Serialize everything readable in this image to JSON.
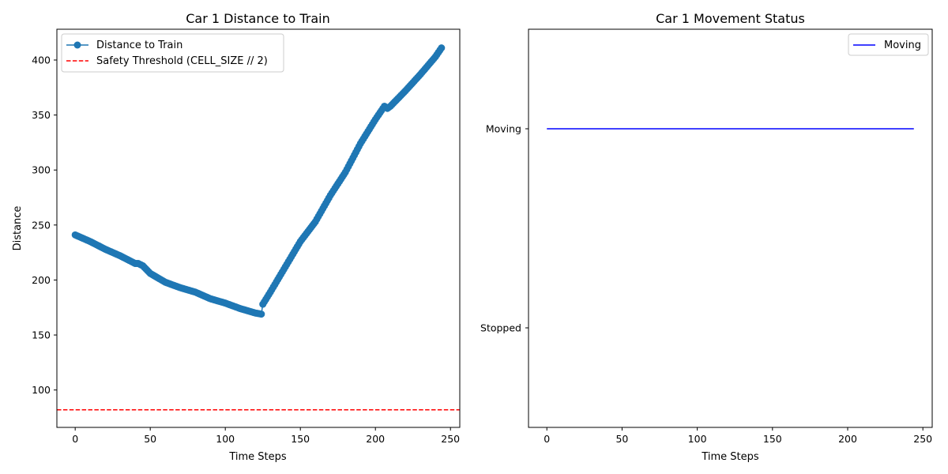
{
  "chart_data": [
    {
      "type": "line",
      "title": "Car 1 Distance to Train",
      "xlabel": "Time Steps",
      "ylabel": "Distance",
      "xlim": [
        -12.2,
        256.2
      ],
      "ylim": [
        66,
        428
      ],
      "xticks": [
        0,
        50,
        100,
        150,
        200,
        250
      ],
      "yticks": [
        100,
        150,
        200,
        250,
        300,
        350,
        400
      ],
      "legend_position": "top-left",
      "series": [
        {
          "name": "Distance to Train",
          "color": "#1f77b4",
          "marker": "circle",
          "keypoints": [
            [
              0,
              241
            ],
            [
              10,
              235
            ],
            [
              20,
              228
            ],
            [
              30,
              222
            ],
            [
              40,
              215
            ],
            [
              42,
              215
            ],
            [
              45,
              213
            ],
            [
              50,
              206
            ],
            [
              60,
              198
            ],
            [
              70,
              193
            ],
            [
              80,
              189
            ],
            [
              90,
              183
            ],
            [
              100,
              179
            ],
            [
              110,
              174
            ],
            [
              120,
              170
            ],
            [
              124,
              169
            ],
            [
              125,
              178
            ],
            [
              130,
              189
            ],
            [
              140,
              212
            ],
            [
              150,
              235
            ],
            [
              160,
              253
            ],
            [
              170,
              277
            ],
            [
              180,
              298
            ],
            [
              190,
              324
            ],
            [
              200,
              346
            ],
            [
              206,
              358
            ],
            [
              208,
              356
            ],
            [
              210,
              358
            ],
            [
              220,
              372
            ],
            [
              230,
              387
            ],
            [
              240,
              403
            ],
            [
              244,
              411
            ]
          ]
        }
      ],
      "reference_lines": [
        {
          "name": "Safety Threshold (CELL_SIZE // 2)",
          "y": 82,
          "color": "#ff0000",
          "style": "dashed"
        }
      ]
    },
    {
      "type": "line",
      "title": "Car 1 Movement Status",
      "xlabel": "Time Steps",
      "xlim": [
        -12.2,
        256.2
      ],
      "xticks": [
        0,
        50,
        100,
        150,
        200,
        250
      ],
      "y_categories": [
        "Stopped",
        "Moving"
      ],
      "ylim": [
        -0.5,
        1.5
      ],
      "legend_position": "top-right",
      "series": [
        {
          "name": "Moving",
          "color": "#0000ff",
          "x": [
            0,
            244
          ],
          "y": [
            1,
            1
          ]
        }
      ]
    }
  ]
}
